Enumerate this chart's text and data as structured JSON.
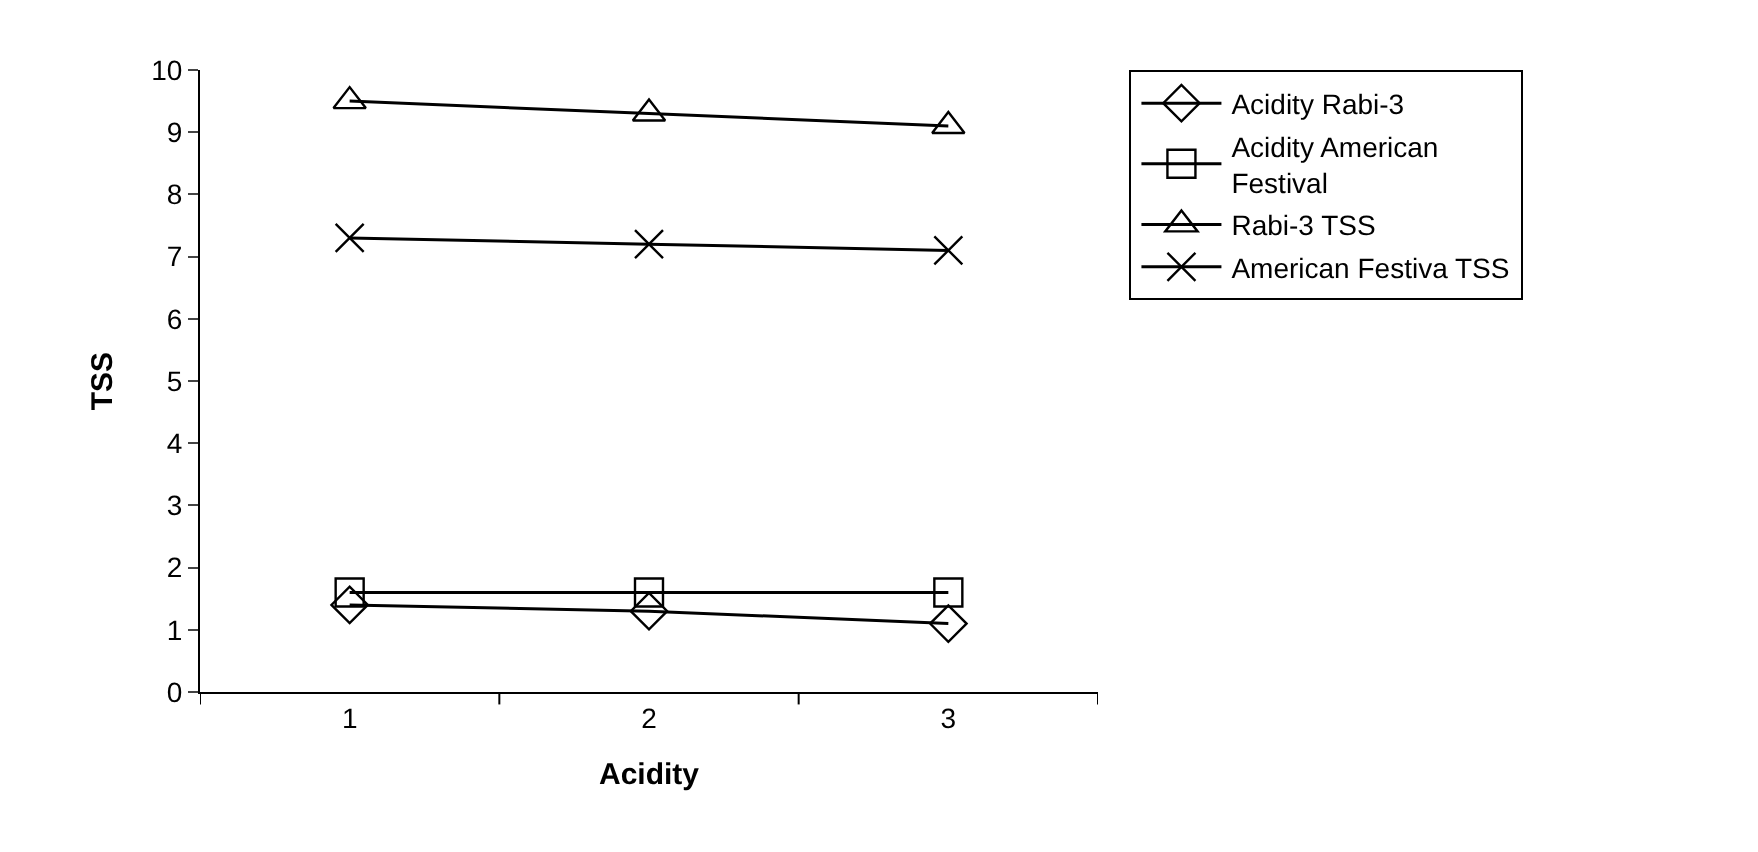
{
  "chart_data": {
    "type": "line",
    "xlabel": "Acidity",
    "ylabel": "TSS",
    "categories": [
      "1",
      "2",
      "3"
    ],
    "series": [
      {
        "name": "Acidity Rabi-3",
        "color": "#000000",
        "marker": "diamond",
        "values": [
          1.4,
          1.3,
          1.1
        ]
      },
      {
        "name": "Acidity American Festival",
        "color": "#000000",
        "marker": "square",
        "values": [
          1.6,
          1.6,
          1.6
        ]
      },
      {
        "name": "Rabi-3 TSS",
        "color": "#000000",
        "marker": "triangle",
        "values": [
          9.5,
          9.3,
          9.1
        ]
      },
      {
        "name": "American Festiva TSS",
        "color": "#000000",
        "marker": "cross",
        "values": [
          7.3,
          7.2,
          7.1
        ]
      }
    ],
    "ylim": [
      0,
      10
    ],
    "yticks": [
      0,
      1,
      2,
      3,
      4,
      5,
      6,
      7,
      8,
      9,
      10
    ],
    "legend": "right",
    "line_style": "solid"
  }
}
